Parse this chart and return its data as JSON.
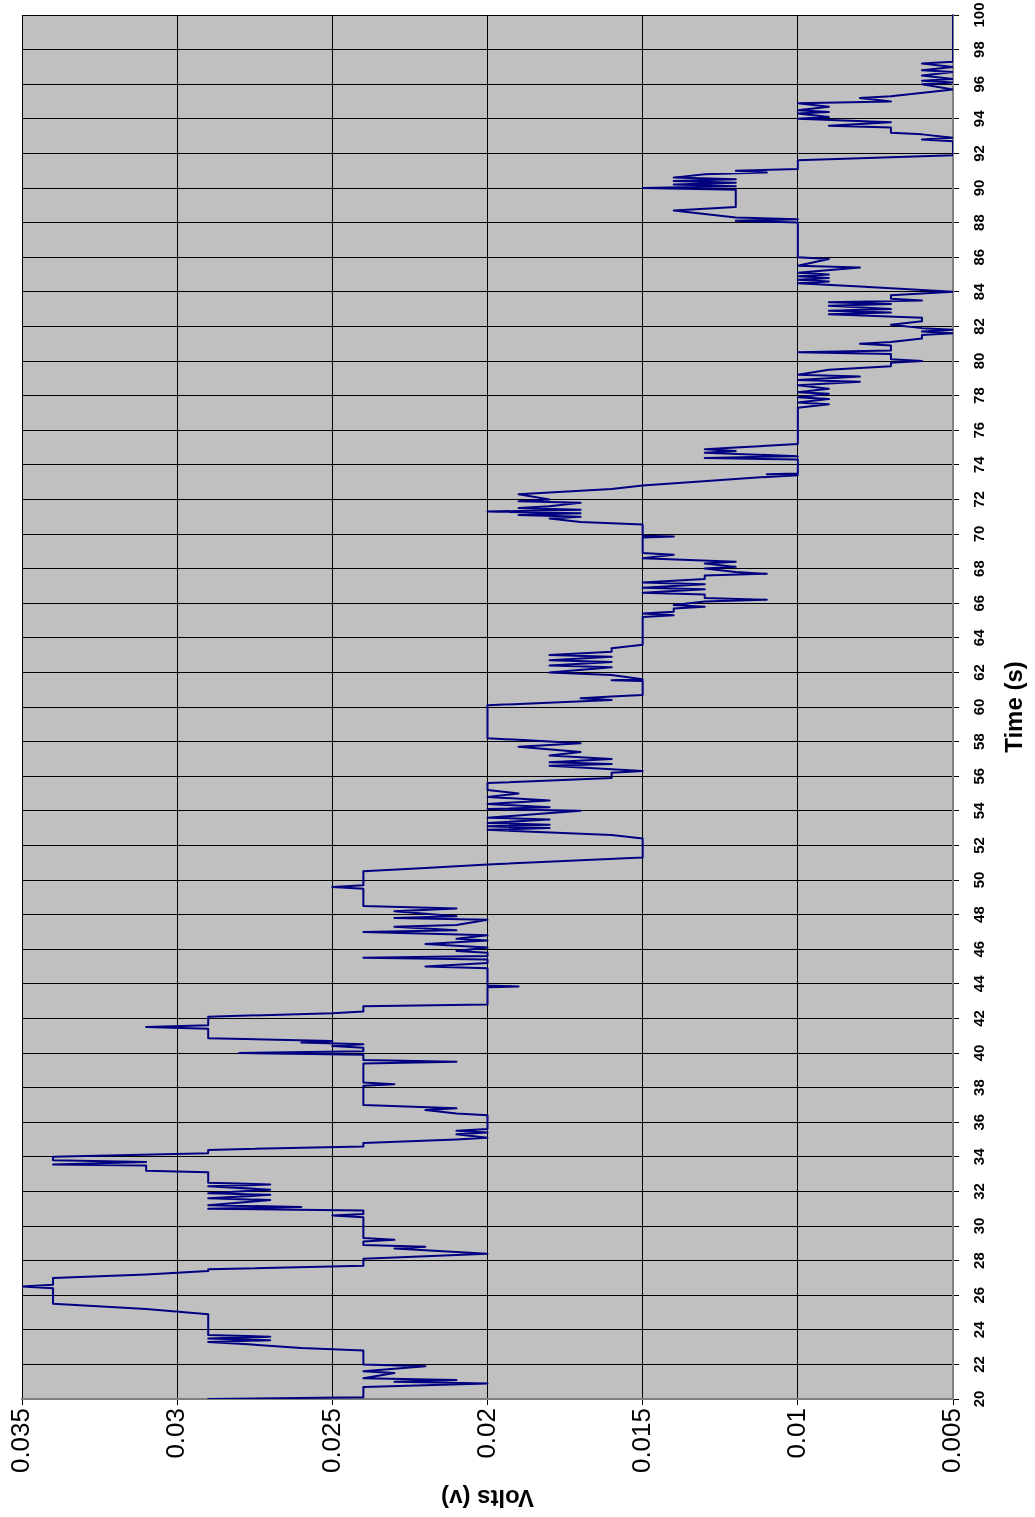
{
  "chart_data": {
    "type": "line",
    "xlabel": "Volts (v)",
    "ylabel": "Time (s)",
    "x": [
      0.029,
      0.024,
      0.024,
      0.02,
      0.023,
      0.021,
      0.024,
      0.023,
      0.024,
      0.022,
      0.024,
      0.024,
      0.026,
      0.028,
      0.029,
      0.027,
      0.029,
      0.027,
      0.029,
      0.029,
      0.031,
      0.034,
      0.034,
      0.035,
      0.034,
      0.034,
      0.031,
      0.029,
      0.029,
      0.024,
      0.024,
      0.02,
      0.022,
      0.023,
      0.022,
      0.024,
      0.024,
      0.023,
      0.024,
      0.024,
      0.025,
      0.024,
      0.024,
      0.029,
      0.026,
      0.029,
      0.027,
      0.029,
      0.027,
      0.029,
      0.027,
      0.029,
      0.027,
      0.029,
      0.029,
      0.031,
      0.031,
      0.034,
      0.031,
      0.034,
      0.034,
      0.029,
      0.029,
      0.024,
      0.024,
      0.021,
      0.02,
      0.021,
      0.02,
      0.021,
      0.02,
      0.02,
      0.021,
      0.022,
      0.021,
      0.024,
      0.024,
      0.023,
      0.024,
      0.024,
      0.021,
      0.024,
      0.024,
      0.028,
      0.024,
      0.024,
      0.025,
      0.024,
      0.026,
      0.025,
      0.029,
      0.029,
      0.031,
      0.029,
      0.029,
      0.025,
      0.024,
      0.024,
      0.02,
      0.02,
      0.019,
      0.02,
      0.02,
      0.022,
      0.021,
      0.02,
      0.02,
      0.024,
      0.02,
      0.02,
      0.021,
      0.02,
      0.022,
      0.02,
      0.021,
      0.02,
      0.024,
      0.021,
      0.023,
      0.021,
      0.02,
      0.023,
      0.021,
      0.023,
      0.021,
      0.024,
      0.024,
      0.025,
      0.024,
      0.024,
      0.022,
      0.021,
      0.02,
      0.015,
      0.015,
      0.016,
      0.02,
      0.018,
      0.02,
      0.018,
      0.02,
      0.018,
      0.02,
      0.017,
      0.02,
      0.018,
      0.02,
      0.018,
      0.02,
      0.019,
      0.02,
      0.02,
      0.016,
      0.016,
      0.015,
      0.016,
      0.018,
      0.016,
      0.018,
      0.016,
      0.018,
      0.017,
      0.019,
      0.017,
      0.019,
      0.02,
      0.02,
      0.016,
      0.017,
      0.016,
      0.015,
      0.015,
      0.016,
      0.015,
      0.016,
      0.018,
      0.016,
      0.018,
      0.016,
      0.018,
      0.016,
      0.018,
      0.016,
      0.016,
      0.015,
      0.015,
      0.014,
      0.015,
      0.014,
      0.014,
      0.013,
      0.014,
      0.013,
      0.011,
      0.013,
      0.013,
      0.015,
      0.013,
      0.015,
      0.013,
      0.015,
      0.013,
      0.013,
      0.011,
      0.012,
      0.013,
      0.012,
      0.013,
      0.012,
      0.015,
      0.014,
      0.015,
      0.015,
      0.014,
      0.015,
      0.015,
      0.017,
      0.018,
      0.017,
      0.019,
      0.017,
      0.02,
      0.017,
      0.019,
      0.018,
      0.017,
      0.019,
      0.018,
      0.019,
      0.016,
      0.015,
      0.011,
      0.01,
      0.011,
      0.01,
      0.01,
      0.013,
      0.01,
      0.013,
      0.012,
      0.013,
      0.012,
      0.01,
      0.01,
      0.009,
      0.01,
      0.009,
      0.01,
      0.009,
      0.01,
      0.009,
      0.01,
      0.008,
      0.01,
      0.008,
      0.01,
      0.009,
      0.007,
      0.007,
      0.006,
      0.007,
      0.007,
      0.01,
      0.007,
      0.007,
      0.008,
      0.007,
      0.006,
      0.006,
      0.005,
      0.006,
      0.005,
      0.006,
      0.007,
      0.006,
      0.006,
      0.009,
      0.007,
      0.009,
      0.007,
      0.009,
      0.007,
      0.009,
      0.006,
      0.007,
      0.007,
      0.005,
      0.008,
      0.01,
      0.009,
      0.01,
      0.009,
      0.01,
      0.009,
      0.01,
      0.008,
      0.01,
      0.009,
      0.01,
      0.01,
      0.012,
      0.01,
      0.012,
      0.013,
      0.014,
      0.012,
      0.012,
      0.015,
      0.012,
      0.014,
      0.012,
      0.014,
      0.012,
      0.014,
      0.013,
      0.011,
      0.012,
      0.01,
      0.01,
      0.005,
      0.005,
      0.006,
      0.005,
      0.006,
      0.007,
      0.007,
      0.009,
      0.007,
      0.01,
      0.009,
      0.01,
      0.009,
      0.01,
      0.009,
      0.01,
      0.007,
      0.008,
      0.007,
      0.005,
      0.006,
      0.005,
      0.006,
      0.005,
      0.006,
      0.005,
      0.006,
      0.005,
      0.006,
      0.005,
      0.005
    ],
    "series": [
      {
        "color": "#000080",
        "values": [
          20,
          20.1,
          20.7,
          20.9,
          21,
          21.1,
          21.2,
          21.5,
          21.6,
          21.9,
          22,
          22.8,
          22.95,
          23.2,
          23.3,
          23.4,
          23.5,
          23.6,
          23.7,
          24.9,
          25.2,
          25.5,
          26.4,
          26.5,
          26.6,
          27,
          27.2,
          27.4,
          27.5,
          27.7,
          28.1,
          28.4,
          28.6,
          28.7,
          28.8,
          28.9,
          29.1,
          29.2,
          29.3,
          30.5,
          30.6,
          30.7,
          30.9,
          31,
          31.1,
          31.2,
          31.5,
          31.6,
          31.8,
          31.9,
          32.1,
          32.3,
          32.4,
          32.5,
          33.1,
          33.2,
          33.5,
          33.55,
          33.7,
          33.8,
          34,
          34.2,
          34.4,
          34.6,
          34.8,
          35,
          35.1,
          35.3,
          35.4,
          35.5,
          35.6,
          36.4,
          36.5,
          36.7,
          36.8,
          37,
          38.1,
          38.2,
          38.3,
          39.4,
          39.5,
          39.6,
          39.9,
          40,
          40.1,
          40.3,
          40.4,
          40.5,
          40.6,
          40.7,
          40.85,
          41.4,
          41.5,
          41.6,
          42.1,
          42.3,
          42.4,
          42.7,
          42.8,
          43.8,
          43.85,
          43.9,
          44.9,
          45,
          45.1,
          45.2,
          45.4,
          45.5,
          45.6,
          45.8,
          45.9,
          46.1,
          46.3,
          46.5,
          46.6,
          46.8,
          47,
          47.1,
          47.3,
          47.4,
          47.7,
          47.8,
          47.9,
          48.2,
          48.35,
          48.5,
          49.5,
          49.6,
          49.7,
          50.5,
          50.7,
          50.8,
          50.9,
          51.3,
          52.4,
          52.6,
          52.9,
          53,
          53.1,
          53.2,
          53.3,
          53.5,
          53.6,
          54,
          54.1,
          54.2,
          54.4,
          54.6,
          54.8,
          55,
          55.2,
          55.6,
          55.9,
          56.2,
          56.3,
          56.4,
          56.6,
          56.7,
          56.8,
          57,
          57.2,
          57.4,
          57.7,
          57.9,
          58.1,
          58.2,
          60.1,
          60.4,
          60.5,
          60.6,
          60.7,
          61.5,
          61.55,
          61.6,
          61.85,
          62,
          62.3,
          62.4,
          62.6,
          62.7,
          62.9,
          63,
          63.2,
          63.4,
          63.6,
          65.2,
          65.3,
          65.4,
          65.5,
          65.7,
          65.8,
          65.9,
          66.1,
          66.2,
          66.3,
          66.5,
          66.6,
          66.8,
          66.9,
          67.1,
          67.2,
          67.4,
          67.6,
          67.7,
          67.8,
          68,
          68.1,
          68.3,
          68.4,
          68.6,
          68.8,
          68.9,
          69.8,
          69.85,
          69.9,
          70.55,
          70.7,
          70.9,
          71,
          71.1,
          71.2,
          71.3,
          71.4,
          71.5,
          71.6,
          71.8,
          71.9,
          72,
          72.3,
          72.6,
          72.8,
          73.3,
          73.4,
          73.45,
          73.5,
          74.3,
          74.4,
          74.5,
          74.7,
          74.8,
          74.9,
          75,
          75.2,
          77.3,
          77.5,
          77.6,
          77.8,
          77.9,
          78.1,
          78.2,
          78.4,
          78.6,
          78.8,
          78.9,
          79.1,
          79.2,
          79.5,
          79.7,
          79.9,
          80,
          80.1,
          80.4,
          80.5,
          80.6,
          80.9,
          81,
          81.1,
          81.3,
          81.5,
          81.6,
          81.7,
          81.8,
          81.9,
          82.1,
          82.3,
          82.5,
          82.7,
          82.8,
          82.9,
          83,
          83.2,
          83.3,
          83.4,
          83.5,
          83.6,
          83.8,
          84,
          84.3,
          84.5,
          84.6,
          84.7,
          84.8,
          84.9,
          85,
          85.1,
          85.4,
          85.5,
          85.9,
          86,
          88,
          88.1,
          88.2,
          88.3,
          88.5,
          88.7,
          88.9,
          89.9,
          90,
          90.1,
          90.2,
          90.3,
          90.4,
          90.5,
          90.6,
          90.8,
          90.9,
          91,
          91.1,
          91.6,
          91.9,
          92.7,
          92.8,
          92.9,
          93.1,
          93.2,
          93.5,
          93.6,
          93.8,
          94,
          94.1,
          94.3,
          94.4,
          94.5,
          94.7,
          94.9,
          95,
          95.2,
          95.3,
          95.7,
          96,
          96.1,
          96.2,
          96.3,
          96.5,
          96.7,
          96.8,
          97,
          97.2,
          97.3,
          100
        ]
      }
    ],
    "xlim": [
      0.035,
      0.005
    ],
    "xticks": [
      0.035,
      0.03,
      0.025,
      0.02,
      0.015,
      0.01,
      0.005
    ],
    "ylim": [
      20,
      100
    ],
    "yticks": [
      20,
      22,
      24,
      26,
      28,
      30,
      32,
      34,
      36,
      38,
      40,
      42,
      44,
      46,
      48,
      50,
      52,
      54,
      56,
      58,
      60,
      62,
      64,
      66,
      68,
      70,
      72,
      74,
      76,
      78,
      80,
      82,
      84,
      86,
      88,
      90,
      92,
      94,
      96,
      98,
      100
    ],
    "grid": true,
    "marker": "none",
    "line_style": "solid"
  }
}
